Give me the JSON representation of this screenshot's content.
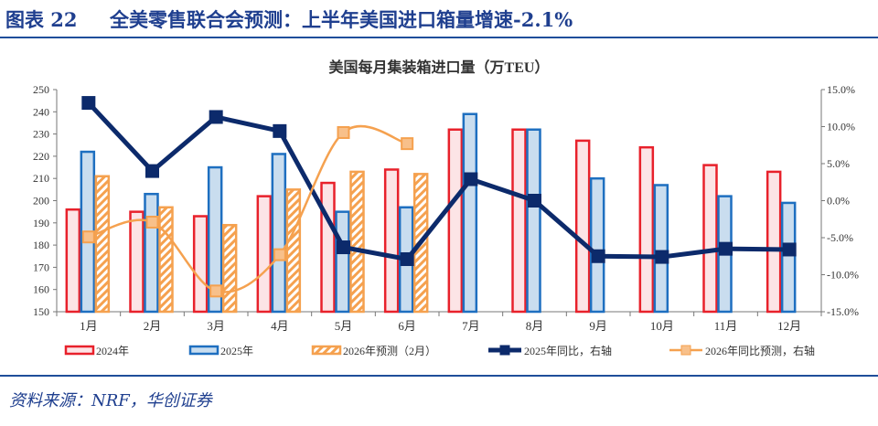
{
  "header": {
    "label": "图表 22",
    "title": "全美零售联合会预测：上半年美国进口箱量增速-2.1%"
  },
  "source": "资料来源：NRF，华创证券",
  "chart_data": {
    "type": "bar",
    "title": "美国每月集装箱进口量（万TEU）",
    "categories": [
      "1月",
      "2月",
      "3月",
      "4月",
      "5月",
      "6月",
      "7月",
      "8月",
      "9月",
      "10月",
      "11月",
      "12月"
    ],
    "ylim": [
      150,
      250
    ],
    "yticks": [
      150,
      160,
      170,
      180,
      190,
      200,
      210,
      220,
      230,
      240,
      250
    ],
    "y2lim": [
      -15,
      15
    ],
    "y2ticks": [
      "-15.0%",
      "-10.0%",
      "-5.0%",
      "0.0%",
      "5.0%",
      "10.0%",
      "15.0%"
    ],
    "legend_position": "bottom",
    "grid": false,
    "series": [
      {
        "name": "2024年",
        "kind": "bar",
        "axis": "left",
        "color": "#e8212b",
        "fill": "#fce4e6",
        "values": [
          196,
          195,
          193,
          202,
          208,
          214,
          232,
          232,
          227,
          224,
          216,
          213
        ]
      },
      {
        "name": "2025年",
        "kind": "bar",
        "axis": "left",
        "color": "#1e6fc0",
        "fill": "#c9ddef",
        "values": [
          222,
          203,
          215,
          221,
          195,
          197,
          239,
          232,
          210,
          207,
          202,
          199
        ]
      },
      {
        "name": "2026年预测（2月）",
        "kind": "bar-hatched",
        "axis": "left",
        "color": "#f5a14f",
        "values": [
          211,
          197,
          189,
          205,
          213,
          212,
          null,
          null,
          null,
          null,
          null,
          null
        ]
      },
      {
        "name": "2025年同比，右轴",
        "kind": "line",
        "axis": "right",
        "color": "#0c2a6b",
        "values": [
          13.2,
          4.0,
          11.3,
          9.4,
          -6.3,
          -7.9,
          2.9,
          0.0,
          -7.5,
          -7.6,
          -6.5,
          -6.6
        ]
      },
      {
        "name": "2026年同比预测，右轴",
        "kind": "smooth-line",
        "axis": "right",
        "color": "#f5a14f",
        "values": [
          -4.9,
          -2.9,
          -12.2,
          -7.3,
          9.2,
          7.7,
          null,
          null,
          null,
          null,
          null,
          null
        ]
      }
    ]
  }
}
